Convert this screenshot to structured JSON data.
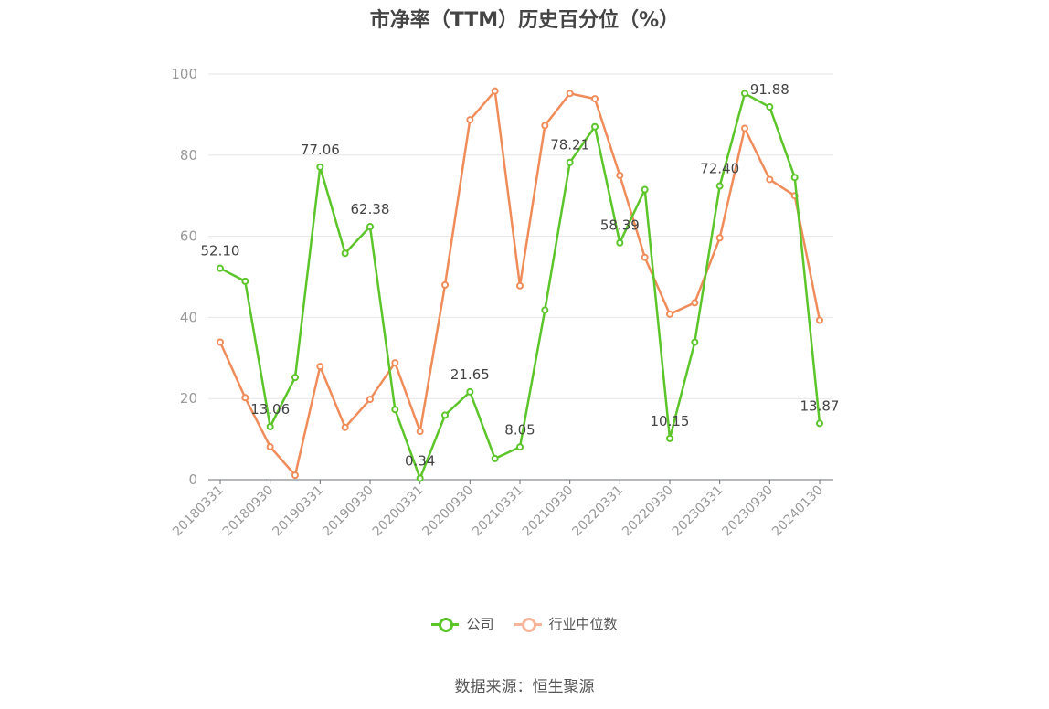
{
  "title": "市净率（TTM）历史百分位（%）",
  "source": "数据来源：恒生聚源",
  "colors": {
    "company": "#5cc52a",
    "industry": "#f08c5a",
    "industry_legend": "#f7b69a",
    "axis": "#999999",
    "grid": "#e6e6e6",
    "label": "#444444"
  },
  "chart_data": {
    "type": "line",
    "title": "市净率（TTM）历史百分位（%）",
    "xlabel": "",
    "ylabel": "",
    "ylim": [
      0,
      100
    ],
    "yticks": [
      0,
      20,
      40,
      60,
      80,
      100
    ],
    "grid": true,
    "legend_position": "bottom",
    "x": [
      "20180331",
      "20180630",
      "20180930",
      "20181231",
      "20190331",
      "20190630",
      "20190930",
      "20191231",
      "20200331",
      "20200630",
      "20200930",
      "20201231",
      "20210331",
      "20210630",
      "20210930",
      "20211231",
      "20220331",
      "20220630",
      "20220930",
      "20221231",
      "20230331",
      "20230630",
      "20230930",
      "20231231",
      "20240130"
    ],
    "x_tick_labels": [
      "20180331",
      "20180930",
      "20190331",
      "20190930",
      "20200331",
      "20200930",
      "20210331",
      "20210930",
      "20220331",
      "20220930",
      "20230331",
      "20230930",
      "20240130"
    ],
    "series": [
      {
        "name": "公司",
        "values": [
          52.1,
          48.9,
          13.06,
          25.2,
          77.06,
          55.8,
          62.38,
          17.3,
          0.34,
          15.9,
          21.65,
          5.2,
          8.05,
          41.8,
          78.21,
          87.0,
          58.39,
          71.5,
          10.15,
          33.9,
          72.4,
          95.2,
          91.88,
          74.5,
          13.87
        ],
        "labels": {
          "0": "52.10",
          "2": "13.06",
          "4": "77.06",
          "6": "62.38",
          "8": "0.34",
          "10": "21.65",
          "12": "8.05",
          "14": "78.21",
          "16": "58.39",
          "18": "10.15",
          "20": "72.40",
          "22": "91.88",
          "24": "13.87"
        }
      },
      {
        "name": "行业中位数",
        "values": [
          33.9,
          20.2,
          8.1,
          1.1,
          27.9,
          12.9,
          19.8,
          28.8,
          11.9,
          48.0,
          88.7,
          95.8,
          47.8,
          87.3,
          95.2,
          93.9,
          75.0,
          54.8,
          40.8,
          43.6,
          59.6,
          86.6,
          74.0,
          70.0,
          39.3
        ]
      }
    ]
  }
}
